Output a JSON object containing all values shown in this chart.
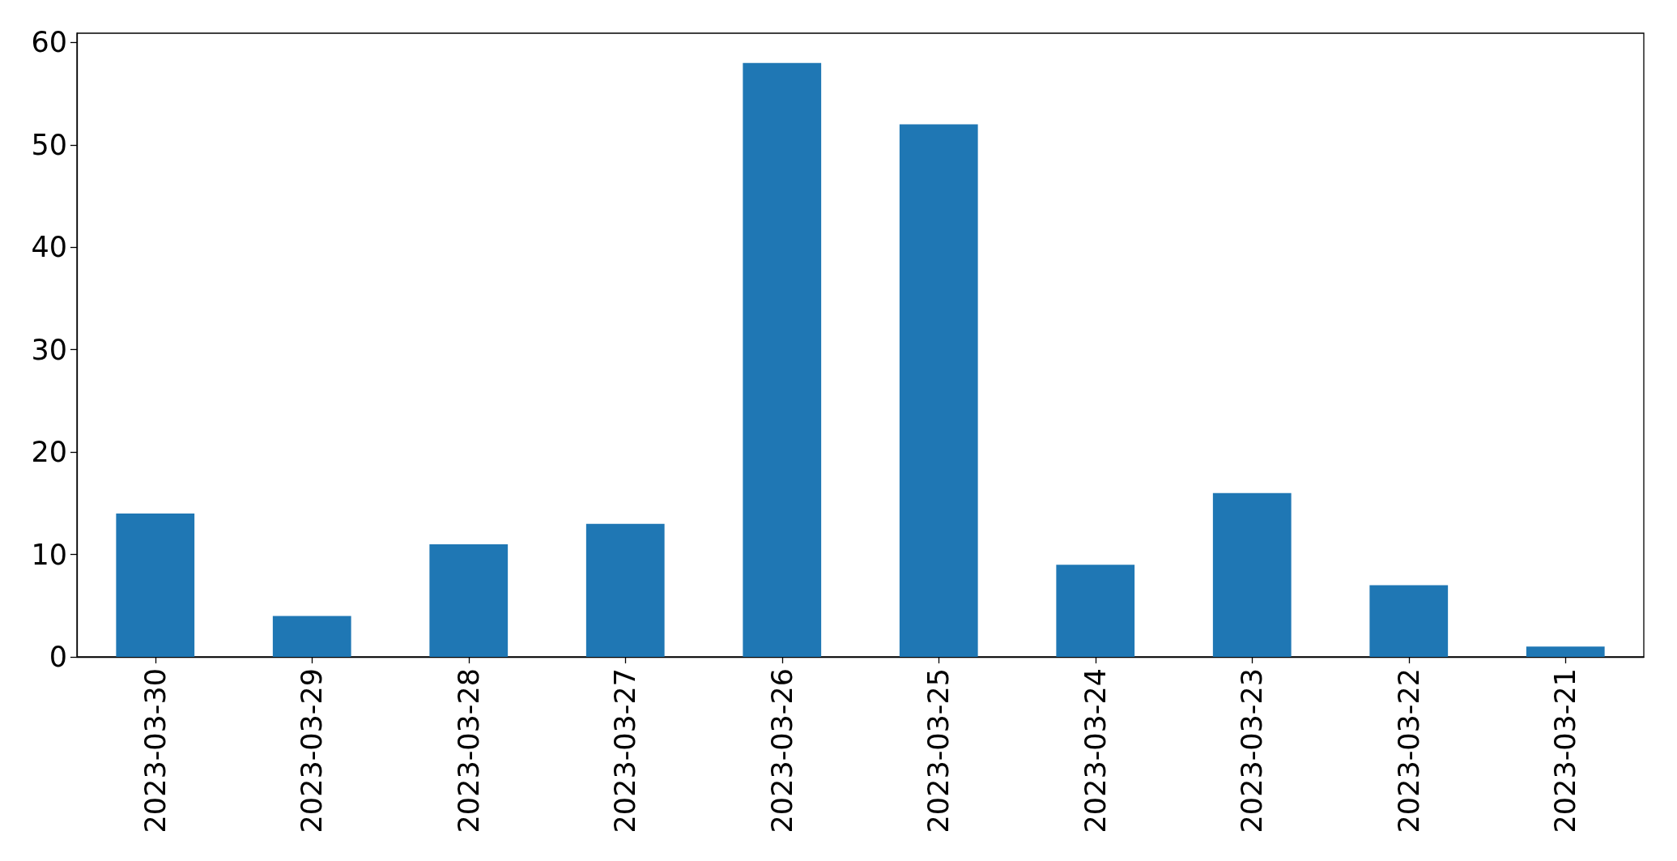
{
  "chart_data": {
    "type": "bar",
    "categories": [
      "2023-03-30",
      "2023-03-29",
      "2023-03-28",
      "2023-03-27",
      "2023-03-26",
      "2023-03-25",
      "2023-03-24",
      "2023-03-23",
      "2023-03-22",
      "2023-03-21"
    ],
    "values": [
      14,
      4,
      11,
      13,
      58,
      52,
      9,
      16,
      7,
      1
    ],
    "color": "#1f77b4",
    "ylim": [
      0,
      60.9
    ],
    "yticks": [
      0,
      10,
      20,
      30,
      40,
      50,
      60
    ],
    "grid": false
  }
}
